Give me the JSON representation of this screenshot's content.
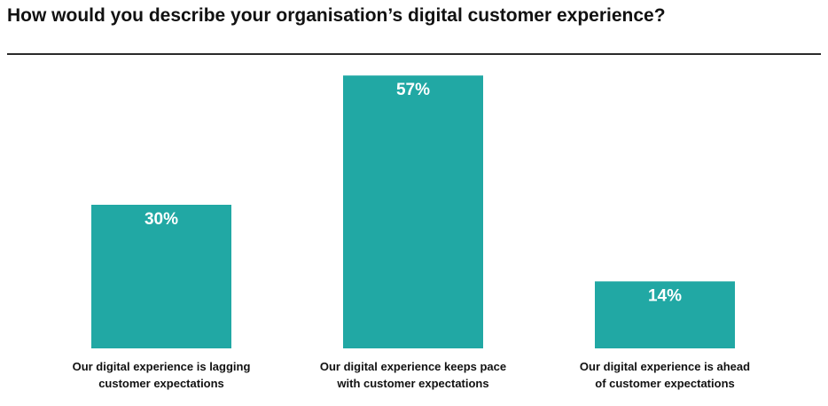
{
  "chart_data": {
    "type": "bar",
    "title": "How would you describe your organisation’s digital customer experience?",
    "categories": [
      [
        "Our digital experience is lagging",
        "customer expectations"
      ],
      [
        "Our digital experience keeps pace",
        "with customer expectations"
      ],
      [
        "Our digital experience is ahead",
        "of customer expectations"
      ]
    ],
    "values": [
      30,
      57,
      14
    ],
    "value_labels": [
      "30%",
      "57%",
      "14%"
    ],
    "ylim": [
      0,
      60
    ],
    "grid": false,
    "legend": "none",
    "bar_color": "#21a8a4"
  }
}
